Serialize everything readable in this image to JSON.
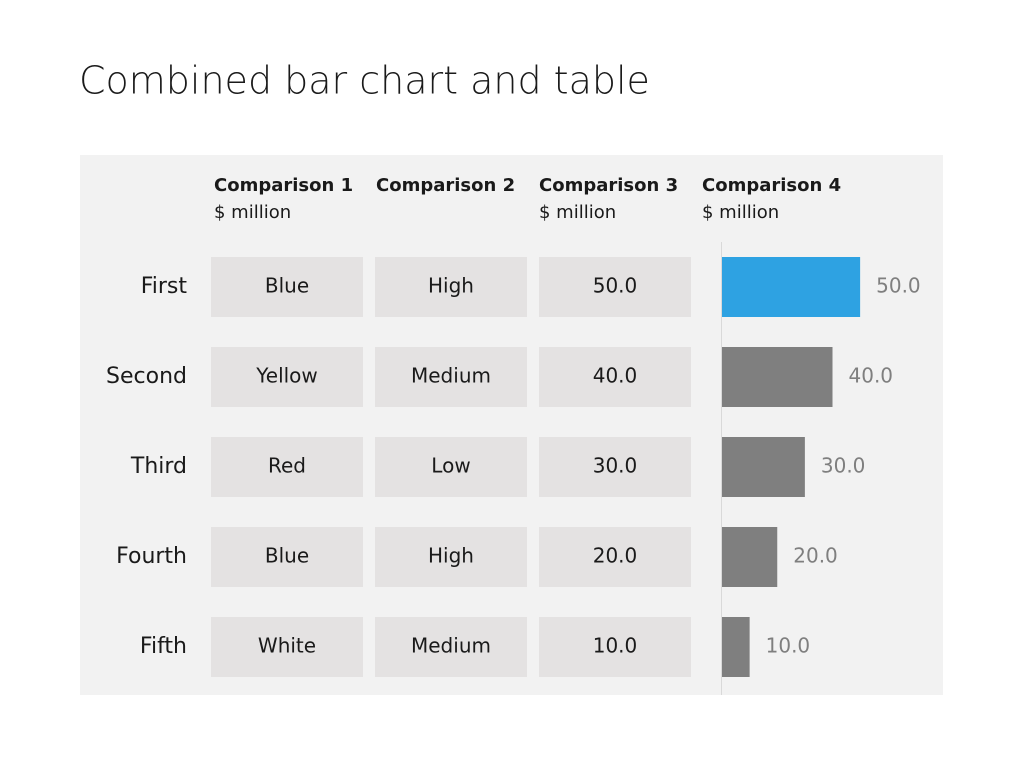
{
  "title": "Combined bar chart and table",
  "table": {
    "columns": [
      {
        "name": "Comparison 1",
        "unit": "$ million"
      },
      {
        "name": "Comparison 2"
      },
      {
        "name": "Comparison 3",
        "unit": "$ million"
      }
    ],
    "rows": [
      [
        "Blue",
        "High",
        "50.0"
      ],
      [
        "Yellow",
        "Medium",
        "40.0"
      ],
      [
        "Red",
        "Low",
        "30.0"
      ],
      [
        "Blue",
        "High",
        "20.0"
      ],
      [
        "White",
        "Medium",
        "10.0"
      ]
    ]
  },
  "chart_data": {
    "type": "bar",
    "orientation": "horizontal",
    "title": "Comparison 4",
    "subtitle": "$ million",
    "categories": [
      "First",
      "Second",
      "Third",
      "Fourth",
      "Fifth"
    ],
    "values": [
      50,
      40,
      30,
      20,
      10
    ],
    "value_labels": [
      "50.0",
      "40.0",
      "30.0",
      "20.0",
      "10.0"
    ],
    "colors": [
      "#2ea2e2",
      "#7f7f7f",
      "#7f7f7f",
      "#7f7f7f",
      "#7f7f7f"
    ],
    "xlim": [
      0,
      80
    ]
  }
}
